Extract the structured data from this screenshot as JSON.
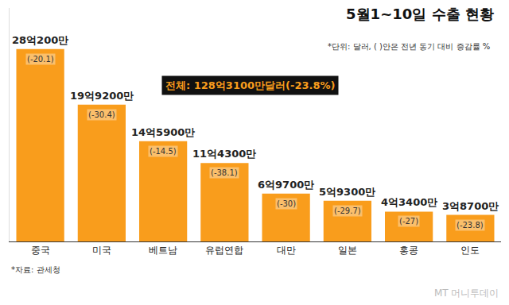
{
  "chart_data": {
    "type": "bar",
    "title": "5월1~10일 수출 현황",
    "subtitle": "*단위: 달러, ( )안은 전년 동기 대비 증감률 %",
    "categories": [
      "중국",
      "미국",
      "베트남",
      "유럽연합",
      "대만",
      "일본",
      "홍콩",
      "인도"
    ],
    "values": [
      2802000000,
      1992000000,
      1459000000,
      1143000000,
      697000000,
      593000000,
      434000000,
      387000000
    ],
    "value_labels": [
      "28억200만",
      "19억9200만",
      "14억5900만",
      "11억4300만",
      "6억9700만",
      "5억9300만",
      "4억3400만",
      "3억8700만"
    ],
    "changes": [
      -20.1,
      -30.4,
      -14.5,
      -38.1,
      -30,
      -29.7,
      -27,
      -23.8
    ],
    "change_labels": [
      "(-20.1)",
      "(-30.4)",
      "(-14.5)",
      "(-38.1)",
      "(-30)",
      "(-29.7)",
      "(-27)",
      "(-23.8)"
    ],
    "total": {
      "value": 12831000000,
      "change": -23.8,
      "label": "전체: 128억3100만달러(-23.8%)"
    },
    "source": "*자료: 관세청",
    "credit": "MT 머니투데이",
    "color": "#f99d1c",
    "ylim": [
      0,
      3400000000
    ],
    "yticks": [],
    "tick_labels": "x",
    "data_labels": true,
    "grid": false
  }
}
